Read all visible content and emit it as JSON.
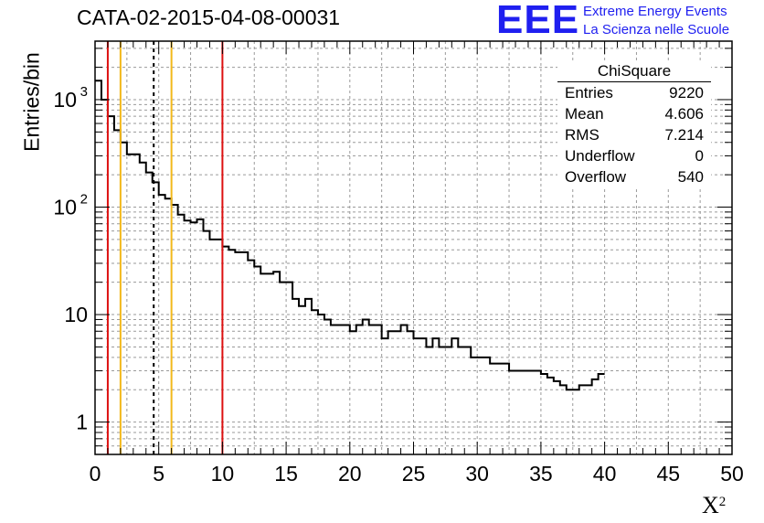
{
  "title": "CATA-02-2015-04-08-00031",
  "logo": {
    "mark": "EEE",
    "line1": "Extreme Energy Events",
    "line2": "La Scienza nelle Scuole",
    "color": "#1f1ff0"
  },
  "stats_box": {
    "name": "ChiSquare",
    "rows": [
      {
        "label": "Entries",
        "value": "9220"
      },
      {
        "label": "Mean",
        "value": "4.606"
      },
      {
        "label": "RMS",
        "value": "7.214"
      },
      {
        "label": "Underflow",
        "value": "0"
      },
      {
        "label": "Overflow",
        "value": "540"
      }
    ]
  },
  "chart_data": {
    "type": "histogram",
    "title": "CATA-02-2015-04-08-00031",
    "xlabel": "X",
    "xlabel_sup": "2",
    "ylabel": "Entries/bin",
    "xlim": [
      0,
      50
    ],
    "ylim": [
      0.5,
      3500
    ],
    "yscale": "log",
    "grid": true,
    "bin_width": 0.5,
    "x_ticks": [
      "0",
      "5",
      "10",
      "15",
      "20",
      "25",
      "30",
      "35",
      "40",
      "45",
      "50"
    ],
    "y_ticks": [
      {
        "value": 1,
        "label": "1"
      },
      {
        "value": 10,
        "label": "10"
      },
      {
        "value": 100,
        "label": "10",
        "sup": "2"
      },
      {
        "value": 1000,
        "label": "10",
        "sup": "3"
      }
    ],
    "values": [
      1500,
      1000,
      700,
      520,
      400,
      310,
      310,
      260,
      210,
      170,
      130,
      120,
      105,
      85,
      75,
      72,
      77,
      60,
      50,
      50,
      43,
      40,
      38,
      38,
      32,
      28,
      24,
      24,
      25,
      20,
      20,
      14,
      12,
      14,
      11,
      10,
      9,
      8,
      8,
      8,
      7,
      8,
      9,
      8,
      8,
      6,
      7,
      7,
      8,
      7,
      6,
      6,
      5,
      6,
      5,
      5,
      6,
      5,
      5,
      4,
      4,
      4,
      3.5,
      3.5,
      3.5,
      3,
      3,
      3,
      3,
      3,
      2.8,
      2.6,
      2.4,
      2.2,
      2.0,
      2.0,
      2.2,
      2.2,
      2.5,
      2.8
    ],
    "vertical_lines": [
      {
        "x": 1.0,
        "color": "#dd1111",
        "style": "solid"
      },
      {
        "x": 2.0,
        "color": "#f2b81a",
        "style": "solid"
      },
      {
        "x": 4.606,
        "color": "#000000",
        "style": "dashed"
      },
      {
        "x": 6.0,
        "color": "#f2b81a",
        "style": "solid"
      },
      {
        "x": 10.0,
        "color": "#dd1111",
        "style": "solid"
      }
    ]
  }
}
